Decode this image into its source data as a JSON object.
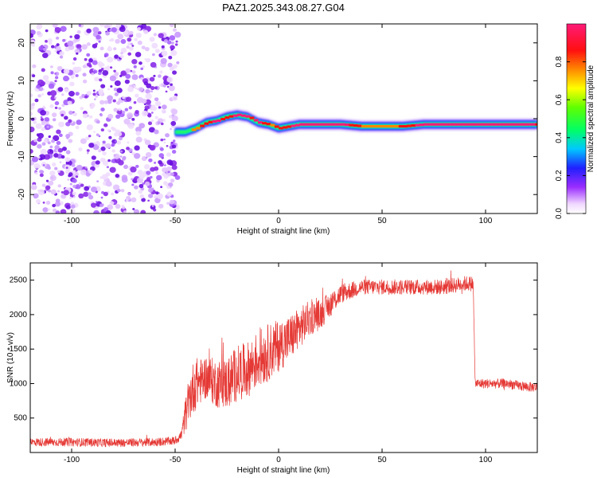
{
  "title": "PAZ1.2025.343.08.27.G04",
  "colors": {
    "snr_line": "#e53935",
    "noise_purple": "#7a1fe6",
    "axis": "#000000"
  },
  "chart_data": [
    {
      "type": "heatmap",
      "id": "spectrogram",
      "xlabel": "Height of straight line (km)",
      "ylabel": "Frequency (Hz)",
      "xlim": [
        -120,
        125
      ],
      "ylim": [
        -25,
        25
      ],
      "xticks": [
        -100,
        -50,
        0,
        50,
        100
      ],
      "yticks": [
        -20,
        -10,
        0,
        10,
        20
      ],
      "noise_region_x": [
        -120,
        -50
      ],
      "ridge": {
        "x": [
          -50,
          -45,
          -40,
          -35,
          -30,
          -25,
          -20,
          -15,
          -10,
          -5,
          0,
          5,
          10,
          20,
          30,
          40,
          50,
          60,
          70,
          80,
          90,
          100,
          110,
          120,
          125
        ],
        "freq": [
          -3.5,
          -3.5,
          -2.5,
          -1,
          -0.5,
          0.5,
          1,
          0.5,
          -1,
          -1.5,
          -2.5,
          -2,
          -1.5,
          -1.5,
          -1.5,
          -2,
          -2,
          -2,
          -1.5,
          -1.5,
          -1.5,
          -1.5,
          -1.5,
          -1.5,
          -1.5
        ],
        "amplitude": [
          0.35,
          0.55,
          0.75,
          0.85,
          0.9,
          0.8,
          0.95,
          0.85,
          0.9,
          0.75,
          0.8,
          0.85,
          0.95,
          0.98,
          0.9,
          0.75,
          0.7,
          0.8,
          0.95,
          0.98,
          0.95,
          0.98,
          0.95,
          0.9,
          0.85
        ]
      },
      "colorbar": {
        "label": "Normalized spectral amplitude",
        "range": [
          0,
          1
        ],
        "ticks": [
          0.0,
          0.2,
          0.4,
          0.6,
          0.8
        ],
        "tick_labels": [
          "0.0",
          "0.2",
          "0.4",
          "0.6",
          "0.8"
        ]
      }
    },
    {
      "type": "line",
      "id": "snr",
      "xlabel": "Height of straight line (km)",
      "ylabel": "SNR (10 * v/v)",
      "xlim": [
        -120,
        125
      ],
      "ylim": [
        0,
        2750
      ],
      "xticks": [
        -100,
        -50,
        0,
        50,
        100
      ],
      "yticks": [
        500,
        1000,
        1500,
        2000,
        2500
      ],
      "series": [
        {
          "name": "SNR",
          "x": [
            -120,
            -100,
            -80,
            -60,
            -50,
            -47,
            -45,
            -42,
            -40,
            -37,
            -35,
            -30,
            -25,
            -20,
            -15,
            -10,
            -5,
            0,
            5,
            10,
            15,
            20,
            25,
            30,
            40,
            50,
            60,
            70,
            80,
            90,
            94,
            95,
            100,
            110,
            120,
            125
          ],
          "values": [
            150,
            150,
            140,
            150,
            170,
            250,
            550,
            900,
            1000,
            1050,
            1100,
            1000,
            1000,
            1150,
            1200,
            1350,
            1450,
            1550,
            1650,
            1800,
            1950,
            2000,
            2150,
            2300,
            2400,
            2400,
            2400,
            2400,
            2400,
            2450,
            2450,
            1000,
            1000,
            1000,
            950,
            950
          ],
          "spread": [
            60,
            60,
            60,
            60,
            60,
            80,
            250,
            380,
            380,
            320,
            320,
            350,
            380,
            400,
            400,
            420,
            420,
            380,
            340,
            300,
            260,
            220,
            180,
            140,
            110,
            110,
            110,
            110,
            110,
            110,
            110,
            70,
            70,
            70,
            70,
            70
          ]
        }
      ]
    }
  ]
}
